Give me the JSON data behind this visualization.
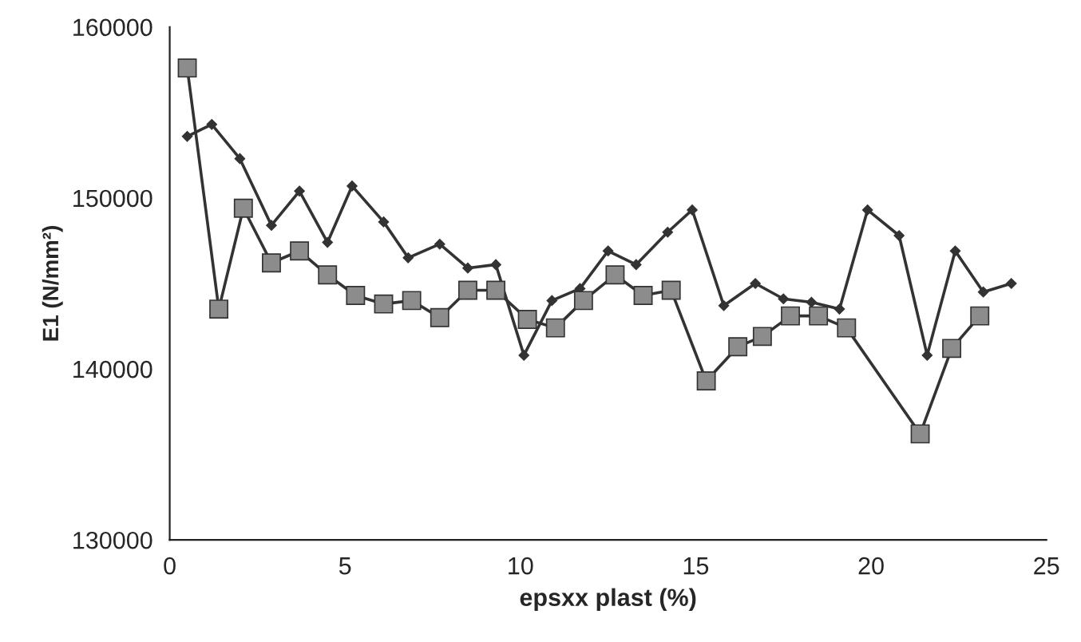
{
  "chart_data": {
    "type": "line",
    "xlabel": "epsxx plast (%)",
    "ylabel": "E1 (N/mm²)",
    "xlim": [
      0,
      25
    ],
    "xticks": [
      0,
      5,
      10,
      15,
      20,
      25
    ],
    "ylim": [
      130000,
      160000
    ],
    "yticks": [
      130000,
      140000,
      150000,
      160000
    ],
    "grid": false,
    "series": [
      {
        "color": "#333333",
        "marker": "diamond",
        "x": [
          0.5,
          1.2,
          2.0,
          2.9,
          3.7,
          4.5,
          5.2,
          6.1,
          6.8,
          7.7,
          8.5,
          9.3,
          10.1,
          10.9,
          11.7,
          12.5,
          13.3,
          14.2,
          14.9,
          15.8,
          16.7,
          17.5,
          18.3,
          19.1,
          19.9,
          20.8,
          21.6,
          22.4,
          23.2,
          24.0
        ],
        "values": [
          153600,
          154300,
          152300,
          148400,
          150400,
          147400,
          150700,
          148600,
          146500,
          147300,
          145900,
          146100,
          140800,
          144000,
          144700,
          146900,
          146100,
          148000,
          149300,
          143700,
          145000,
          144100,
          143900,
          143500,
          149300,
          147800,
          140800,
          146900,
          144500,
          145000
        ]
      },
      {
        "color": "#333333",
        "marker": "square",
        "x": [
          0.5,
          1.4,
          2.1,
          2.9,
          3.7,
          4.5,
          5.3,
          6.1,
          6.9,
          7.7,
          8.5,
          9.3,
          10.2,
          11.0,
          11.8,
          12.7,
          13.5,
          14.3,
          15.3,
          16.2,
          16.9,
          17.7,
          18.5,
          19.3,
          21.4,
          22.3,
          23.1
        ],
        "values": [
          157600,
          143500,
          149400,
          146200,
          146900,
          145500,
          144300,
          143800,
          144000,
          143000,
          144600,
          144600,
          142900,
          142400,
          144000,
          145500,
          144300,
          144600,
          139300,
          141300,
          141900,
          143100,
          143100,
          142400,
          136200,
          141200,
          143100
        ]
      }
    ]
  }
}
